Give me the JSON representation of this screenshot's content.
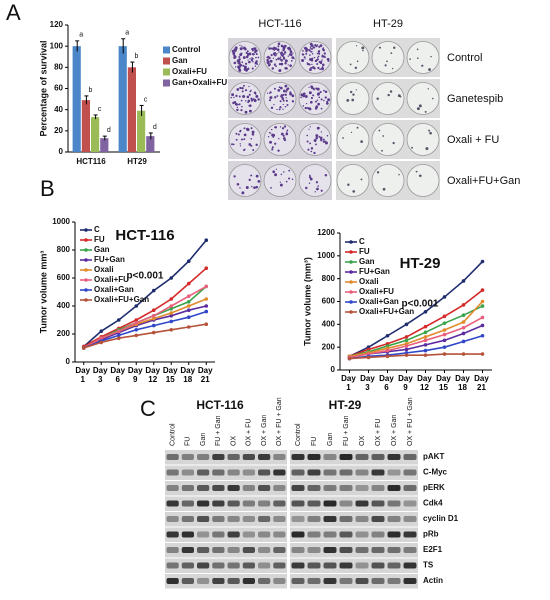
{
  "panel_labels": [
    "A",
    "B",
    "C"
  ],
  "chart_data": [
    {
      "type": "bar",
      "y_label": "Percentage of survival",
      "categories": [
        "HCT116",
        "HT29"
      ],
      "series": [
        {
          "name": "Control",
          "color": "#4a86c8",
          "values": [
            100,
            100
          ],
          "errors": [
            5,
            7
          ],
          "letters": [
            "a",
            "a"
          ]
        },
        {
          "name": "Gan",
          "color": "#c0504d",
          "values": [
            49,
            80
          ],
          "errors": [
            4,
            5
          ],
          "letters": [
            "b",
            "b"
          ]
        },
        {
          "name": "Oxali+FU",
          "color": "#9bbb59",
          "values": [
            33,
            39
          ],
          "errors": [
            2,
            5
          ],
          "letters": [
            "c",
            "c"
          ]
        },
        {
          "name": "Gan+Oxali+FU",
          "color": "#8064a2",
          "values": [
            13,
            15
          ],
          "errors": [
            2,
            3
          ],
          "letters": [
            "d",
            "d"
          ]
        }
      ],
      "ylim": [
        0,
        120
      ],
      "yticks": [
        0,
        20,
        40,
        60,
        80,
        100,
        120
      ]
    },
    {
      "type": "line",
      "title": "HCT-116",
      "y_label": "Tumor volume mm³",
      "annotation": "p<0.001",
      "categories": [
        "Day 1",
        "Day 3",
        "Day 6",
        "Day 9",
        "Day 12",
        "Day 15",
        "Day 18",
        "Day 21"
      ],
      "series": [
        {
          "name": "C",
          "color": "#1f2d6e",
          "values": [
            110,
            220,
            300,
            400,
            510,
            600,
            720,
            870
          ]
        },
        {
          "name": "FU",
          "color": "#d42a2a",
          "values": [
            110,
            180,
            240,
            300,
            370,
            450,
            560,
            670
          ]
        },
        {
          "name": "Gan",
          "color": "#3aa34a",
          "values": [
            100,
            170,
            230,
            280,
            330,
            380,
            430,
            540
          ]
        },
        {
          "name": "FU+Gan",
          "color": "#5b2ca0",
          "values": [
            100,
            160,
            210,
            260,
            300,
            330,
            370,
            400
          ]
        },
        {
          "name": "Oxali",
          "color": "#e08a2c",
          "values": [
            100,
            170,
            220,
            270,
            310,
            350,
            400,
            450
          ]
        },
        {
          "name": "Oxali+FU",
          "color": "#e8607c",
          "values": [
            100,
            170,
            220,
            280,
            330,
            400,
            470,
            540
          ]
        },
        {
          "name": "Oxali+Gan",
          "color": "#3048c8",
          "values": [
            100,
            150,
            190,
            230,
            260,
            290,
            320,
            360
          ]
        },
        {
          "name": "Oxali+FU+Gan",
          "color": "#b5533a",
          "values": [
            100,
            140,
            170,
            190,
            210,
            230,
            250,
            270
          ]
        }
      ],
      "ylim": [
        0,
        1000
      ],
      "yticks": [
        0,
        200,
        400,
        600,
        800,
        1000
      ]
    },
    {
      "type": "line",
      "title": "HT-29",
      "y_label": "Tumor volume (mm³)",
      "annotation": "p<0.001",
      "categories": [
        "Day 1",
        "Day 3",
        "Day 6",
        "Day 9",
        "Day 12",
        "Day 15",
        "Day 18",
        "Day 21"
      ],
      "series": [
        {
          "name": "C",
          "color": "#1f2d6e",
          "values": [
            120,
            200,
            300,
            400,
            510,
            640,
            780,
            950
          ]
        },
        {
          "name": "FU",
          "color": "#d42a2a",
          "values": [
            120,
            180,
            230,
            290,
            380,
            470,
            570,
            700
          ]
        },
        {
          "name": "Gan",
          "color": "#3aa34a",
          "values": [
            120,
            160,
            210,
            260,
            330,
            410,
            480,
            560
          ]
        },
        {
          "name": "FU+Gan",
          "color": "#5b2ca0",
          "values": [
            120,
            140,
            160,
            180,
            220,
            260,
            320,
            390
          ]
        },
        {
          "name": "Oxali",
          "color": "#e08a2c",
          "values": [
            120,
            150,
            190,
            230,
            290,
            350,
            420,
            600
          ]
        },
        {
          "name": "Oxali+FU",
          "color": "#e8607c",
          "values": [
            110,
            140,
            170,
            210,
            260,
            310,
            370,
            460
          ]
        },
        {
          "name": "Oxali+Gan",
          "color": "#3048c8",
          "values": [
            100,
            120,
            130,
            150,
            170,
            200,
            250,
            300
          ]
        },
        {
          "name": "Oxali+FU+Gan",
          "color": "#b5533a",
          "values": [
            100,
            110,
            120,
            130,
            130,
            140,
            140,
            140
          ]
        }
      ],
      "ylim": [
        0,
        1200
      ],
      "yticks": [
        0,
        200,
        400,
        600,
        800,
        1000,
        1200
      ]
    }
  ],
  "colony_assay": {
    "cell_lines": [
      "HCT-116",
      "HT-29"
    ],
    "treatments": [
      "Control",
      "Ganetespib",
      "Oxali + FU",
      "Oxali+FU+Gan"
    ]
  },
  "western_blot": {
    "cell_lines": [
      "HCT-116",
      "HT-29"
    ],
    "lanes": [
      "Control",
      "FU",
      "Gan",
      "FU + Gan",
      "OX",
      "OX + FU",
      "OX + Gan",
      "OX + FU + Gan"
    ],
    "proteins": [
      "pAKT",
      "C-Myc",
      "pERK",
      "Cdk4",
      "cyclin D1",
      "pRb",
      "E2F1",
      "TS",
      "Actin"
    ]
  }
}
